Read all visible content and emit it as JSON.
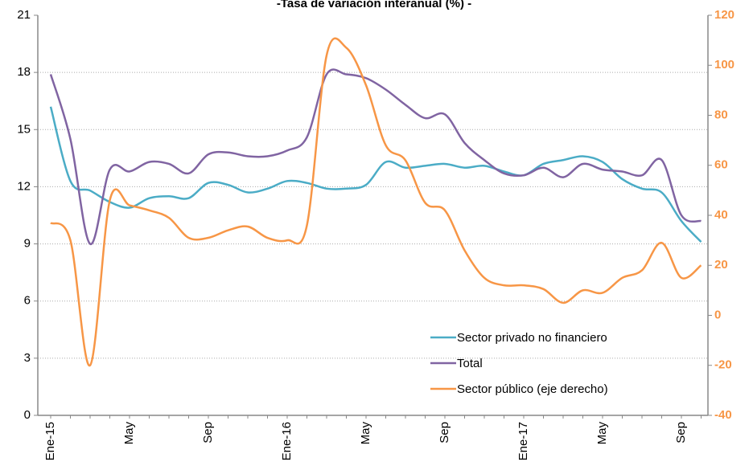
{
  "chart_data": {
    "type": "line",
    "title": "-Tasa de variación interanual (%) -",
    "categories": [
      "Ene-15",
      null,
      null,
      null,
      "May",
      null,
      null,
      null,
      "Sep",
      null,
      null,
      null,
      "Ene-16",
      null,
      null,
      null,
      "May",
      null,
      null,
      null,
      "Sep",
      null,
      null,
      null,
      "Ene-17",
      null,
      null,
      null,
      "May",
      null,
      null,
      null,
      "Sep",
      null
    ],
    "series": [
      {
        "name": "Sector privado no financiero",
        "color": "#4bacc6",
        "values": [
          16.2,
          12.3,
          11.8,
          11.2,
          10.9,
          11.4,
          11.5,
          11.4,
          12.2,
          12.1,
          11.7,
          11.9,
          12.3,
          12.2,
          11.9,
          11.9,
          12.1,
          13.3,
          13.0,
          13.1,
          13.2,
          13.0,
          13.1,
          12.8,
          12.6,
          13.2,
          13.4,
          13.6,
          13.3,
          12.4,
          11.9,
          11.7,
          10.2,
          9.1
        ]
      },
      {
        "name": "Total",
        "color": "#8064a2",
        "values": [
          17.9,
          14.5,
          9.0,
          12.9,
          12.8,
          13.3,
          13.2,
          12.7,
          13.7,
          13.8,
          13.6,
          13.6,
          13.9,
          14.6,
          17.9,
          17.9,
          17.7,
          17.1,
          16.3,
          15.6,
          15.8,
          14.3,
          13.4,
          12.7,
          12.6,
          13.0,
          12.5,
          13.2,
          12.9,
          12.8,
          12.6,
          13.4,
          10.5,
          10.2
        ]
      },
      {
        "name": "Sector público (eje derecho)",
        "color": "#f79646",
        "axis": "y2",
        "values": [
          37,
          30,
          -20,
          46,
          44,
          42,
          39,
          31,
          31,
          34,
          35.5,
          31,
          30,
          36,
          104,
          107,
          92,
          68,
          62,
          45,
          42,
          26,
          15,
          12,
          12,
          10.5,
          5,
          10,
          9,
          15,
          18,
          29,
          15,
          20
        ]
      }
    ],
    "ylim": [
      0,
      21
    ],
    "yticks": [
      0,
      3,
      6,
      9,
      12,
      15,
      18,
      21
    ],
    "y2lim": [
      -40,
      120
    ],
    "y2ticks": [
      -40,
      -20,
      0,
      20,
      40,
      60,
      80,
      100,
      120
    ],
    "grid": true,
    "legend": "lower right"
  }
}
